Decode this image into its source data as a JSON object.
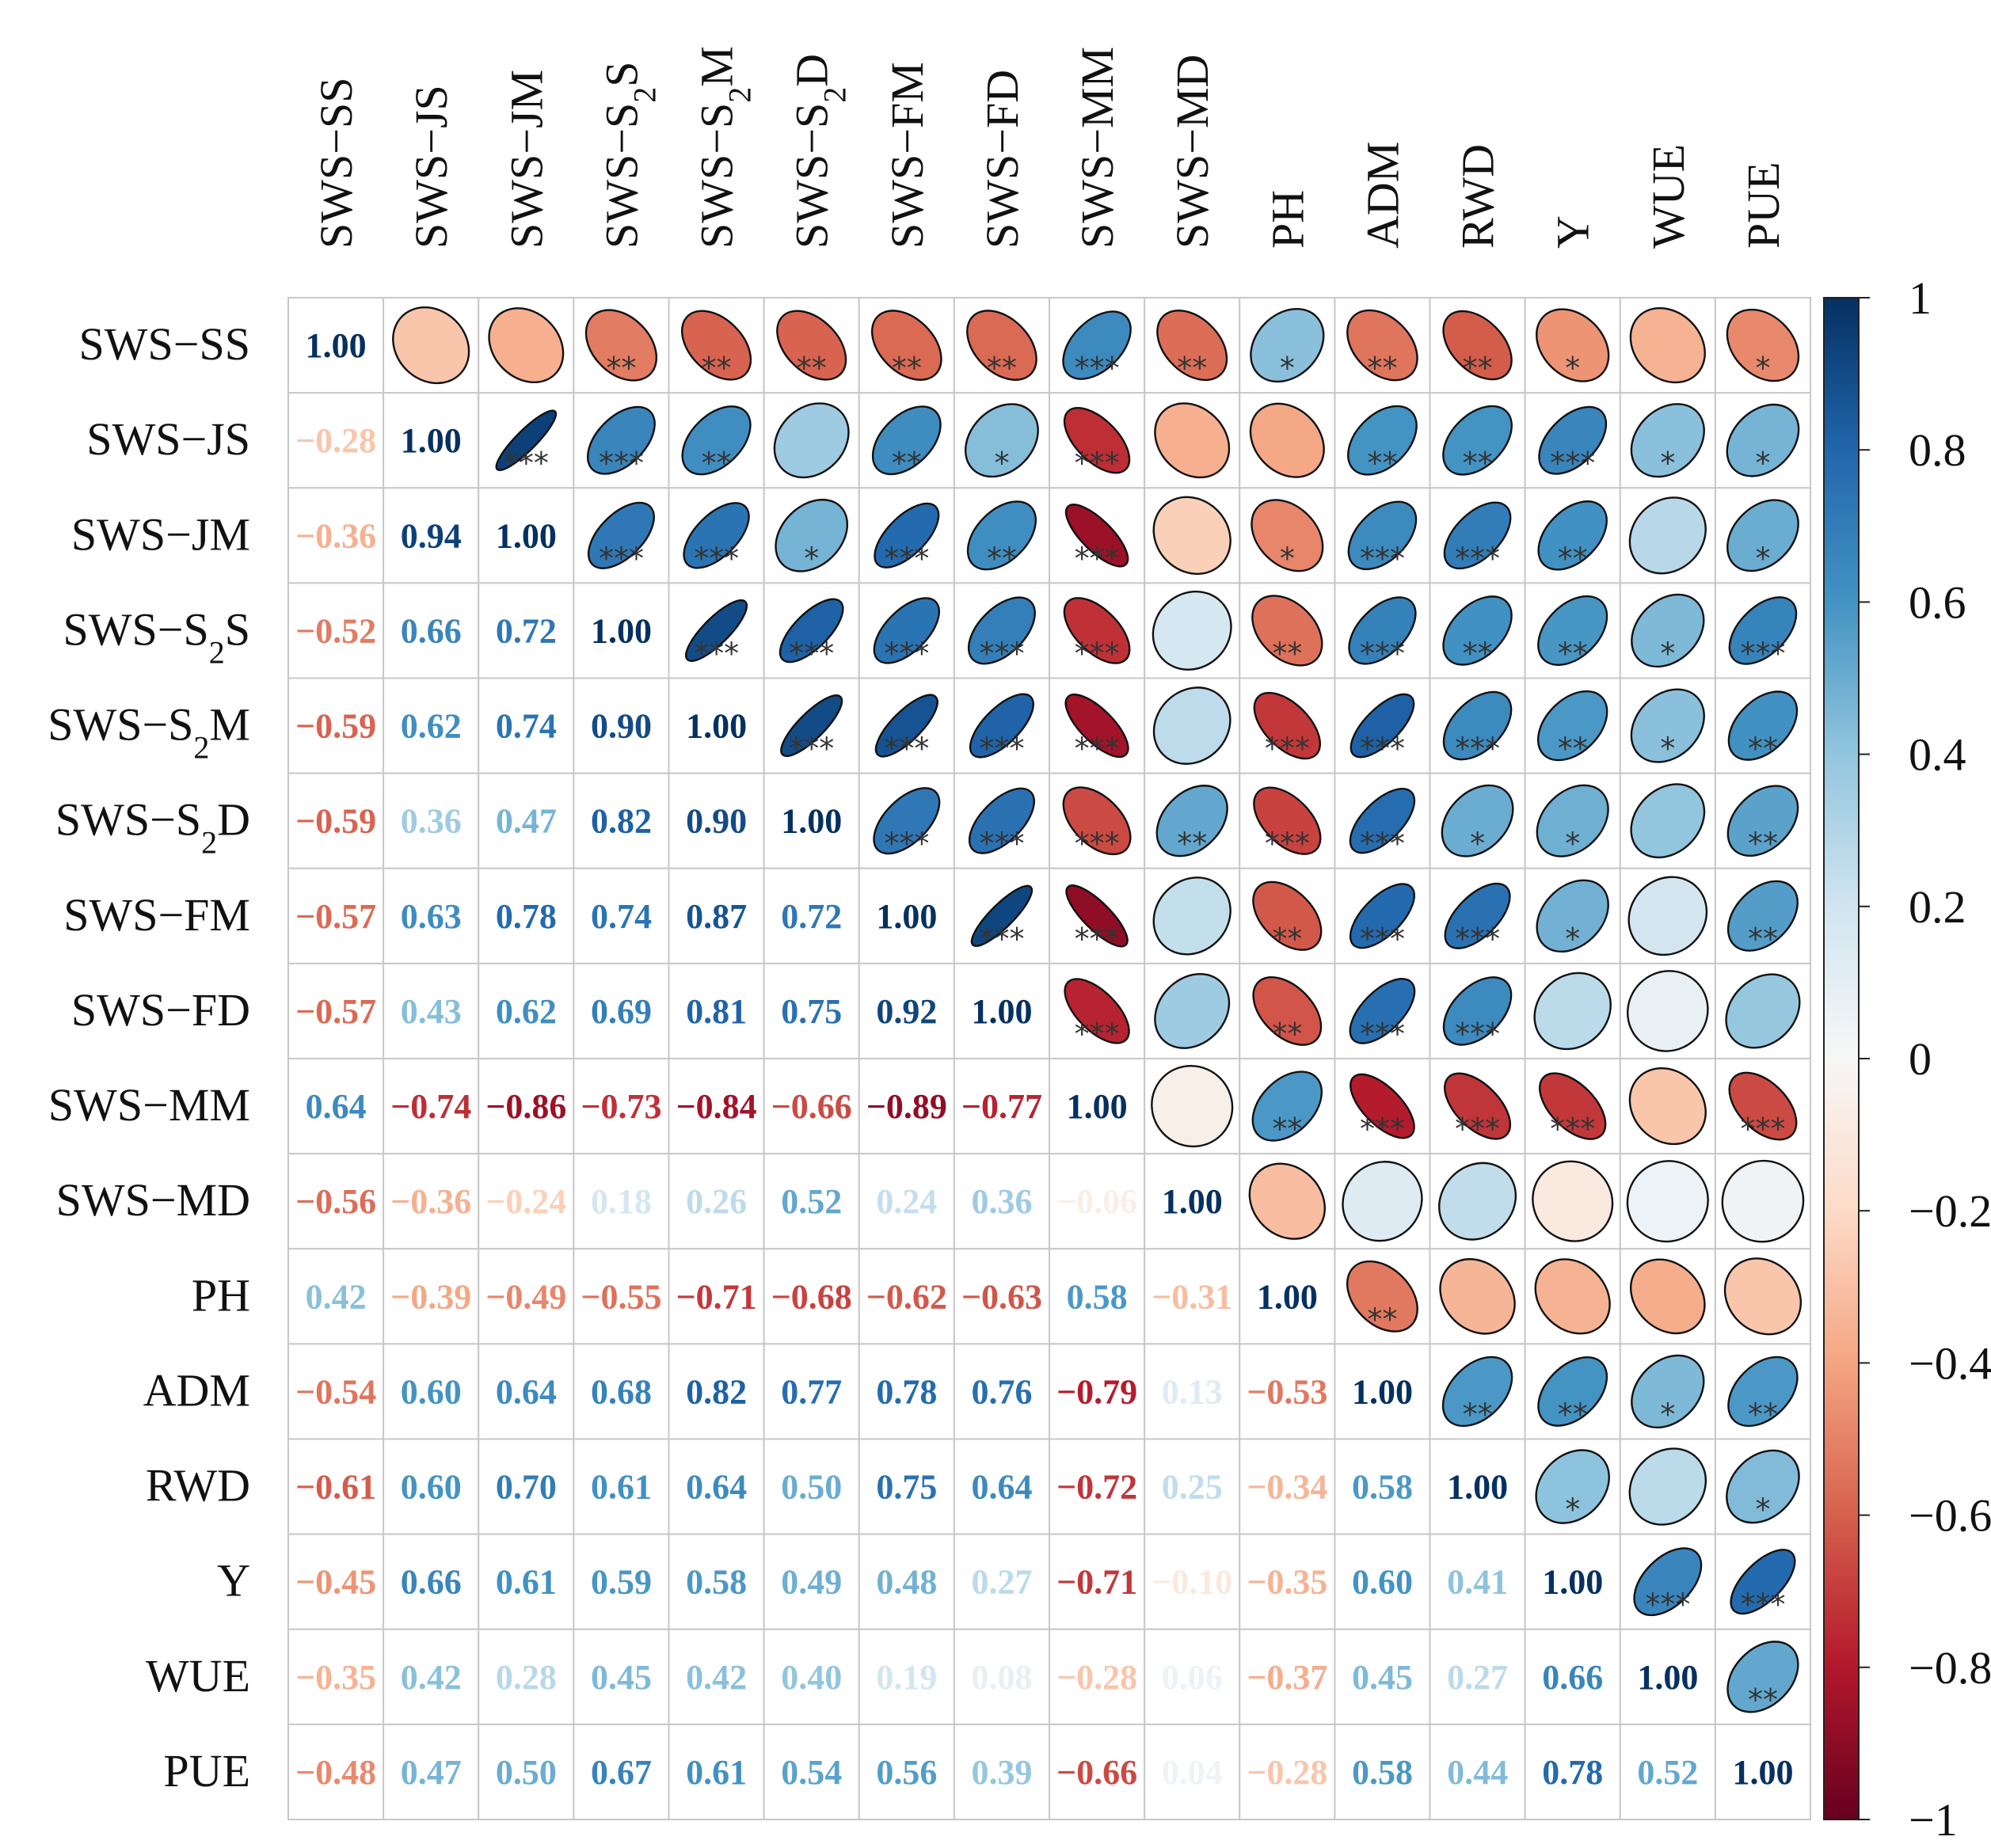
{
  "chart_data": {
    "type": "heatmap",
    "subtype": "correlation-matrix",
    "lower_triangle": "numbers",
    "upper_triangle": "ellipses with significance stars",
    "variables": [
      "SWS−SS",
      "SWS−JS",
      "SWS−JM",
      "SWS−S₂S",
      "SWS−S₂M",
      "SWS−S₂D",
      "SWS−FM",
      "SWS−FD",
      "SWS−MM",
      "SWS−MD",
      "PH",
      "ADM",
      "RWD",
      "Y",
      "WUE",
      "PUE"
    ],
    "matrix": [
      [
        1.0,
        -0.28,
        -0.36,
        -0.52,
        -0.59,
        -0.59,
        -0.57,
        -0.57,
        0.64,
        -0.56,
        0.42,
        -0.54,
        -0.61,
        -0.45,
        -0.35,
        -0.48
      ],
      [
        -0.28,
        1.0,
        0.94,
        0.66,
        0.62,
        0.36,
        0.63,
        0.43,
        -0.74,
        -0.36,
        -0.39,
        0.6,
        0.6,
        0.66,
        0.42,
        0.47
      ],
      [
        -0.36,
        0.94,
        1.0,
        0.72,
        0.74,
        0.47,
        0.78,
        0.62,
        -0.86,
        -0.24,
        -0.49,
        0.64,
        0.7,
        0.61,
        0.28,
        0.5
      ],
      [
        -0.52,
        0.66,
        0.72,
        1.0,
        0.9,
        0.82,
        0.74,
        0.69,
        -0.73,
        0.18,
        -0.55,
        0.68,
        0.61,
        0.59,
        0.45,
        0.67
      ],
      [
        -0.59,
        0.62,
        0.74,
        0.9,
        1.0,
        0.9,
        0.87,
        0.81,
        -0.84,
        0.26,
        -0.71,
        0.82,
        0.64,
        0.58,
        0.42,
        0.61
      ],
      [
        -0.59,
        0.36,
        0.47,
        0.82,
        0.9,
        1.0,
        0.72,
        0.75,
        -0.66,
        0.52,
        -0.68,
        0.77,
        0.5,
        0.49,
        0.4,
        0.54
      ],
      [
        -0.57,
        0.63,
        0.78,
        0.74,
        0.87,
        0.72,
        1.0,
        0.92,
        -0.89,
        0.24,
        -0.62,
        0.78,
        0.75,
        0.48,
        0.19,
        0.56
      ],
      [
        -0.57,
        0.43,
        0.62,
        0.69,
        0.81,
        0.75,
        0.92,
        1.0,
        -0.77,
        0.36,
        -0.63,
        0.76,
        0.64,
        0.27,
        0.08,
        0.39
      ],
      [
        0.64,
        -0.74,
        -0.86,
        -0.73,
        -0.84,
        -0.66,
        -0.89,
        -0.77,
        1.0,
        -0.06,
        0.58,
        -0.79,
        -0.72,
        -0.71,
        -0.28,
        -0.66
      ],
      [
        -0.56,
        -0.36,
        -0.24,
        0.18,
        0.26,
        0.52,
        0.24,
        0.36,
        -0.06,
        1.0,
        -0.31,
        0.13,
        0.25,
        -0.1,
        0.06,
        0.04
      ],
      [
        0.42,
        -0.39,
        -0.49,
        -0.55,
        -0.71,
        -0.68,
        -0.62,
        -0.63,
        0.58,
        -0.31,
        1.0,
        -0.53,
        -0.34,
        -0.35,
        -0.37,
        -0.28
      ],
      [
        -0.54,
        0.6,
        0.64,
        0.68,
        0.82,
        0.77,
        0.78,
        0.76,
        -0.79,
        0.13,
        -0.53,
        1.0,
        0.58,
        0.6,
        0.45,
        0.58
      ],
      [
        -0.61,
        0.6,
        0.7,
        0.61,
        0.64,
        0.5,
        0.75,
        0.64,
        -0.72,
        0.25,
        -0.34,
        0.58,
        1.0,
        0.41,
        0.27,
        0.44
      ],
      [
        -0.45,
        0.66,
        0.61,
        0.59,
        0.58,
        0.49,
        0.48,
        0.27,
        -0.71,
        -0.1,
        -0.35,
        0.6,
        0.41,
        1.0,
        0.66,
        0.78
      ],
      [
        -0.35,
        0.42,
        0.28,
        0.45,
        0.42,
        0.4,
        0.19,
        0.08,
        -0.28,
        0.06,
        -0.37,
        0.45,
        0.27,
        0.66,
        1.0,
        0.52
      ],
      [
        -0.48,
        0.47,
        0.5,
        0.67,
        0.61,
        0.54,
        0.56,
        0.39,
        -0.66,
        0.04,
        -0.28,
        0.58,
        0.44,
        0.78,
        0.52,
        1.0
      ]
    ],
    "significance": [
      [
        "",
        "",
        "",
        "**",
        "**",
        "**",
        "**",
        "**",
        "***",
        "**",
        "*",
        "**",
        "**",
        "*",
        "",
        "*"
      ],
      [
        "",
        "",
        "***",
        "***",
        "**",
        "",
        "**",
        "*",
        "***",
        "",
        "",
        "**",
        "**",
        "***",
        "*",
        "*"
      ],
      [
        "",
        "",
        "",
        "***",
        "***",
        "*",
        "***",
        "**",
        "***",
        "",
        "*",
        "***",
        "***",
        "**",
        "",
        "*"
      ],
      [
        "",
        "",
        "",
        "",
        "***",
        "***",
        "***",
        "***",
        "***",
        "",
        "**",
        "***",
        "**",
        "**",
        "*",
        "***"
      ],
      [
        "",
        "",
        "",
        "",
        "",
        "***",
        "***",
        "***",
        "***",
        "",
        "***",
        "***",
        "***",
        "**",
        "*",
        "**"
      ],
      [
        "",
        "",
        "",
        "",
        "",
        "",
        "***",
        "***",
        "***",
        "**",
        "***",
        "***",
        "*",
        "*",
        "",
        "**"
      ],
      [
        "",
        "",
        "",
        "",
        "",
        "",
        "",
        "***",
        "***",
        "",
        "**",
        "***",
        "***",
        "*",
        "",
        "**"
      ],
      [
        "",
        "",
        "",
        "",
        "",
        "",
        "",
        "",
        "***",
        "",
        "**",
        "***",
        "***",
        "",
        "",
        ""
      ],
      [
        "",
        "",
        "",
        "",
        "",
        "",
        "",
        "",
        "",
        "",
        "**",
        "***",
        "***",
        "***",
        "",
        "***"
      ],
      [
        "",
        "",
        "",
        "",
        "",
        "",
        "",
        "",
        "",
        "",
        "",
        "",
        "",
        "",
        "",
        ""
      ],
      [
        "",
        "",
        "",
        "",
        "",
        "",
        "",
        "",
        "",
        "",
        "",
        "**",
        "",
        "",
        "",
        ""
      ],
      [
        "",
        "",
        "",
        "",
        "",
        "",
        "",
        "",
        "",
        "",
        "",
        "",
        "**",
        "**",
        "*",
        "**"
      ],
      [
        "",
        "",
        "",
        "",
        "",
        "",
        "",
        "",
        "",
        "",
        "",
        "",
        "",
        "*",
        "",
        "*"
      ],
      [
        "",
        "",
        "",
        "",
        "",
        "",
        "",
        "",
        "",
        "",
        "",
        "",
        "",
        "",
        "***",
        "***"
      ],
      [
        "",
        "",
        "",
        "",
        "",
        "",
        "",
        "",
        "",
        "",
        "",
        "",
        "",
        "",
        "",
        "**"
      ],
      [
        "",
        "",
        "",
        "",
        "",
        "",
        "",
        "",
        "",
        "",
        "",
        "",
        "",
        "",
        "",
        ""
      ]
    ],
    "colorbar": {
      "range": [
        -1,
        1
      ],
      "tick_labels": [
        "1",
        "0.8",
        "0.6",
        "0.4",
        "0.2",
        "0",
        "−0.2",
        "−0.4",
        "−0.6",
        "−0.8",
        "−1"
      ],
      "tick_values": [
        1,
        0.8,
        0.6,
        0.4,
        0.2,
        0,
        -0.2,
        -0.4,
        -0.6,
        -0.8,
        -1
      ],
      "colormap": "RdBu",
      "color_stops": [
        "#67001f",
        "#b2182b",
        "#d6604d",
        "#f4a582",
        "#fddbc7",
        "#f7f7f7",
        "#d1e5f0",
        "#92c5de",
        "#4393c3",
        "#2166ac",
        "#053061"
      ]
    },
    "colors": {
      "grid": "#c8c8c8",
      "ellipse_outline": "#111111",
      "label": "#111111"
    }
  }
}
